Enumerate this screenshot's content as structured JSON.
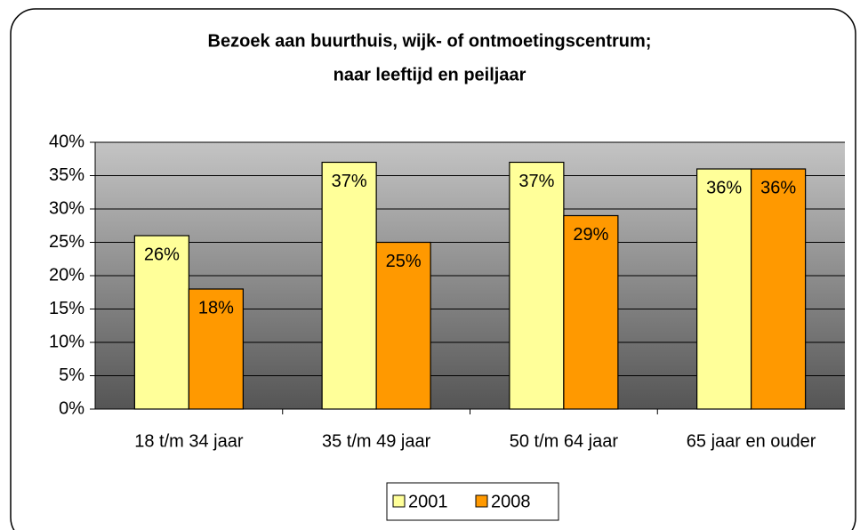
{
  "chart_data": {
    "type": "bar",
    "title": [
      "Bezoek aan buurthuis, wijk- of ontmoetingscentrum;",
      "naar leeftijd en peiljaar"
    ],
    "categories": [
      "18 t/m 34 jaar",
      "35 t/m 49 jaar",
      "50 t/m 64 jaar",
      "65 jaar en ouder"
    ],
    "series": [
      {
        "name": "2001",
        "color": "#ffff99",
        "values": [
          26,
          37,
          37,
          36
        ],
        "value_labels": [
          "26%",
          "37%",
          "37%",
          "36%"
        ]
      },
      {
        "name": "2008",
        "color": "#ff9900",
        "values": [
          18,
          25,
          29,
          36
        ],
        "value_labels": [
          "18%",
          "25%",
          "29%",
          "36%"
        ]
      }
    ],
    "ylim": [
      0,
      40
    ],
    "yticks": [
      {
        "value": 0,
        "label": "0%"
      },
      {
        "value": 5,
        "label": "5%"
      },
      {
        "value": 10,
        "label": "10%"
      },
      {
        "value": 15,
        "label": "15%"
      },
      {
        "value": 20,
        "label": "20%"
      },
      {
        "value": 25,
        "label": "25%"
      },
      {
        "value": 30,
        "label": "30%"
      },
      {
        "value": 35,
        "label": "35%"
      },
      {
        "value": 40,
        "label": "40%"
      }
    ],
    "grid": true,
    "legend": "bottom"
  }
}
